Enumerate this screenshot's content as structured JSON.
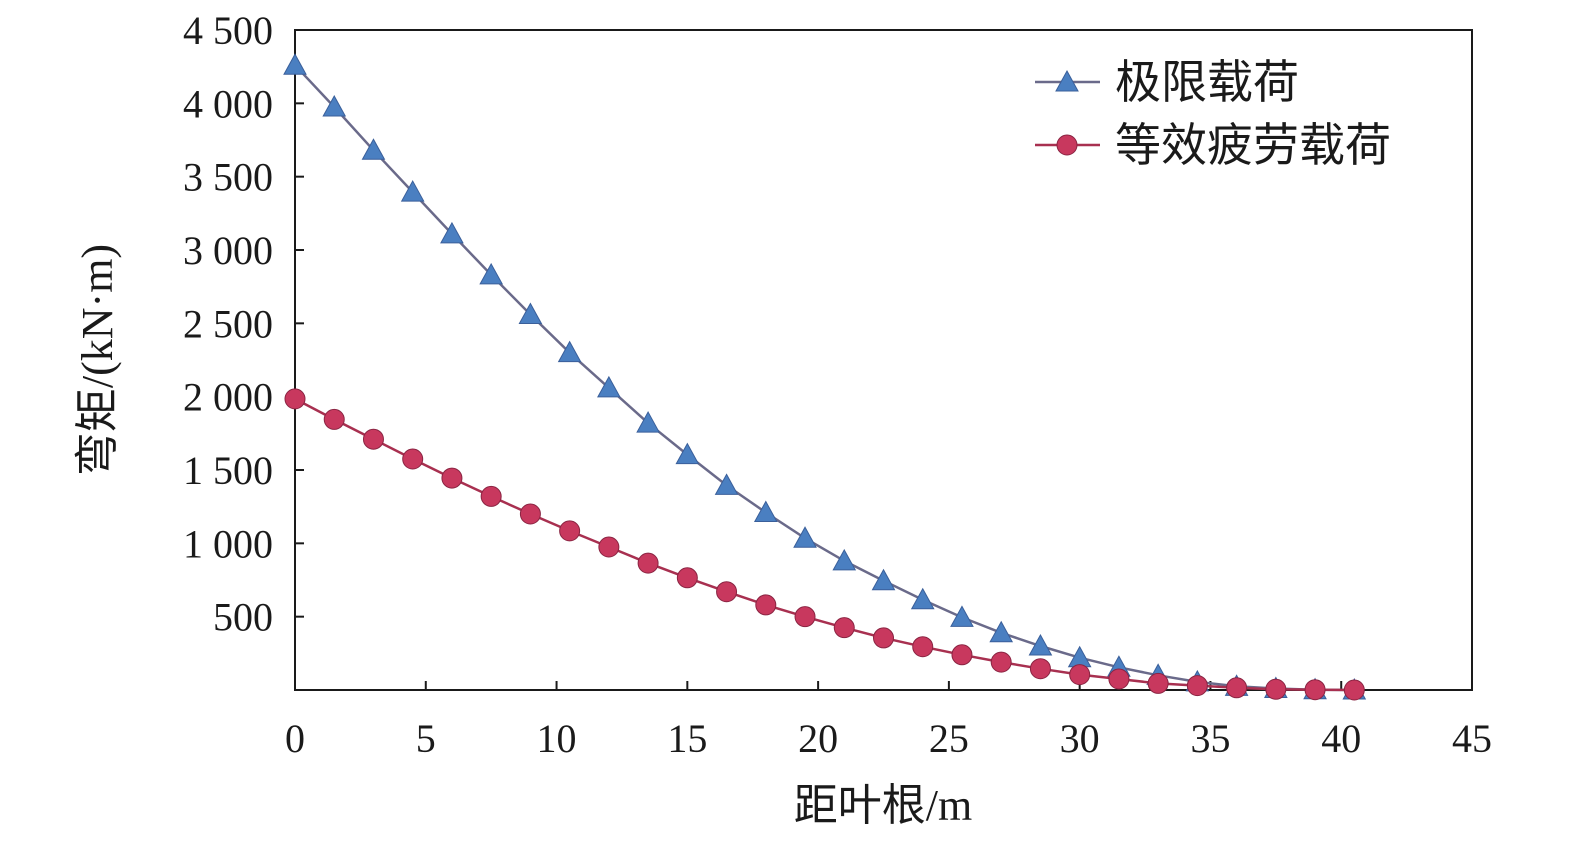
{
  "chart_data": {
    "type": "line",
    "title": "",
    "xlabel": "距叶根/m",
    "ylabel": "弯矩/(kN·m)",
    "xlim": [
      0,
      45
    ],
    "ylim": [
      0,
      4500
    ],
    "x_ticks": [
      0,
      5,
      10,
      15,
      20,
      25,
      30,
      35,
      40,
      45
    ],
    "x_tick_labels": [
      "0",
      "5",
      "10",
      "15",
      "20",
      "25",
      "30",
      "35",
      "40",
      "45"
    ],
    "y_ticks": [
      500,
      1000,
      1500,
      2000,
      2500,
      3000,
      3500,
      4000,
      4500
    ],
    "y_tick_labels": [
      "500",
      "1 000",
      "1 500",
      "2 000",
      "2 500",
      "3 000",
      "3 500",
      "4 000",
      "4 500"
    ],
    "grid": false,
    "legend_position": "top-right",
    "x": [
      0,
      1.5,
      3,
      4.5,
      6,
      7.5,
      9,
      10.5,
      12,
      13.5,
      15,
      16.5,
      18,
      19.5,
      21,
      22.5,
      24,
      25.5,
      27,
      28.5,
      30,
      31.5,
      33,
      34.5,
      36,
      37.5,
      39,
      40.5
    ],
    "series": [
      {
        "name": "极限载荷",
        "marker": "triangle",
        "color": "#4a7fc1",
        "line_color": "#6a6a8a",
        "values": [
          4260,
          3975,
          3680,
          3395,
          3110,
          2830,
          2560,
          2300,
          2060,
          1820,
          1605,
          1395,
          1210,
          1035,
          880,
          745,
          615,
          495,
          390,
          300,
          220,
          155,
          100,
          55,
          25,
          10,
          2,
          0
        ]
      },
      {
        "name": "等效疲劳载荷",
        "marker": "circle",
        "color": "#c8385e",
        "line_color": "#a83050",
        "values": [
          1985,
          1845,
          1710,
          1575,
          1445,
          1320,
          1200,
          1085,
          975,
          865,
          765,
          670,
          580,
          500,
          425,
          355,
          295,
          240,
          190,
          145,
          105,
          75,
          45,
          30,
          15,
          5,
          2,
          0
        ]
      }
    ]
  }
}
